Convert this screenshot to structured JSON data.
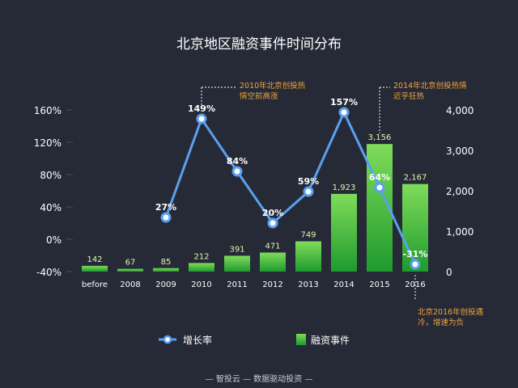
{
  "colors": {
    "background": "#262a37",
    "title": "#ffffff",
    "axis_text": "#ffffff",
    "bar_top": "#7fdc5a",
    "bar_bottom": "#1f9a2e",
    "bar_label": "#dff7a8",
    "line": "#5aa0f0",
    "point_fill": "#ffffff",
    "annotation": "#f0a43a",
    "gridline": "#4a4f5e",
    "footer": "#c9ccd6"
  },
  "footer": "— 智投云 — 数据驱动投资 —",
  "chart_data": {
    "type": "bar",
    "title": "北京地区融资事件时间分布",
    "categories": [
      "before",
      "2008",
      "2009",
      "2010",
      "2011",
      "2012",
      "2013",
      "2014",
      "2015",
      "2016"
    ],
    "y_left": {
      "ticks": [
        "-40%",
        "0%",
        "40%",
        "80%",
        "120%",
        "160%"
      ],
      "range": [
        -40,
        160
      ]
    },
    "y_right": {
      "ticks": [
        "0",
        "1,000",
        "2,000",
        "3,000",
        "4,000"
      ],
      "range": [
        0,
        4000
      ]
    },
    "grid": false,
    "legend_position": "bottom",
    "series": [
      {
        "name": "融资事件",
        "type": "bar",
        "axis": "right",
        "values": [
          142,
          67,
          85,
          212,
          391,
          471,
          749,
          1923,
          3156,
          2167
        ],
        "labels": [
          "142",
          "67",
          "85",
          "212",
          "391",
          "471",
          "749",
          "1,923",
          "3,156",
          "2,167"
        ]
      },
      {
        "name": "增长率",
        "type": "line",
        "axis": "left",
        "values": [
          null,
          null,
          27,
          149,
          84,
          20,
          59,
          157,
          64,
          -31
        ],
        "labels": [
          "",
          "",
          "27%",
          "149%",
          "84%",
          "20%",
          "59%",
          "157%",
          "64%",
          "-31%"
        ]
      }
    ],
    "annotations": [
      {
        "category": "2010",
        "text_lines": [
          "2010年北京创投热",
          "情空前高涨"
        ]
      },
      {
        "category": "2015",
        "text_lines": [
          "2014年北京创投热情",
          "近乎狂热"
        ]
      },
      {
        "category": "2016",
        "text_lines": [
          "北京2016年创投遇",
          "冷，增速为负"
        ]
      }
    ]
  }
}
